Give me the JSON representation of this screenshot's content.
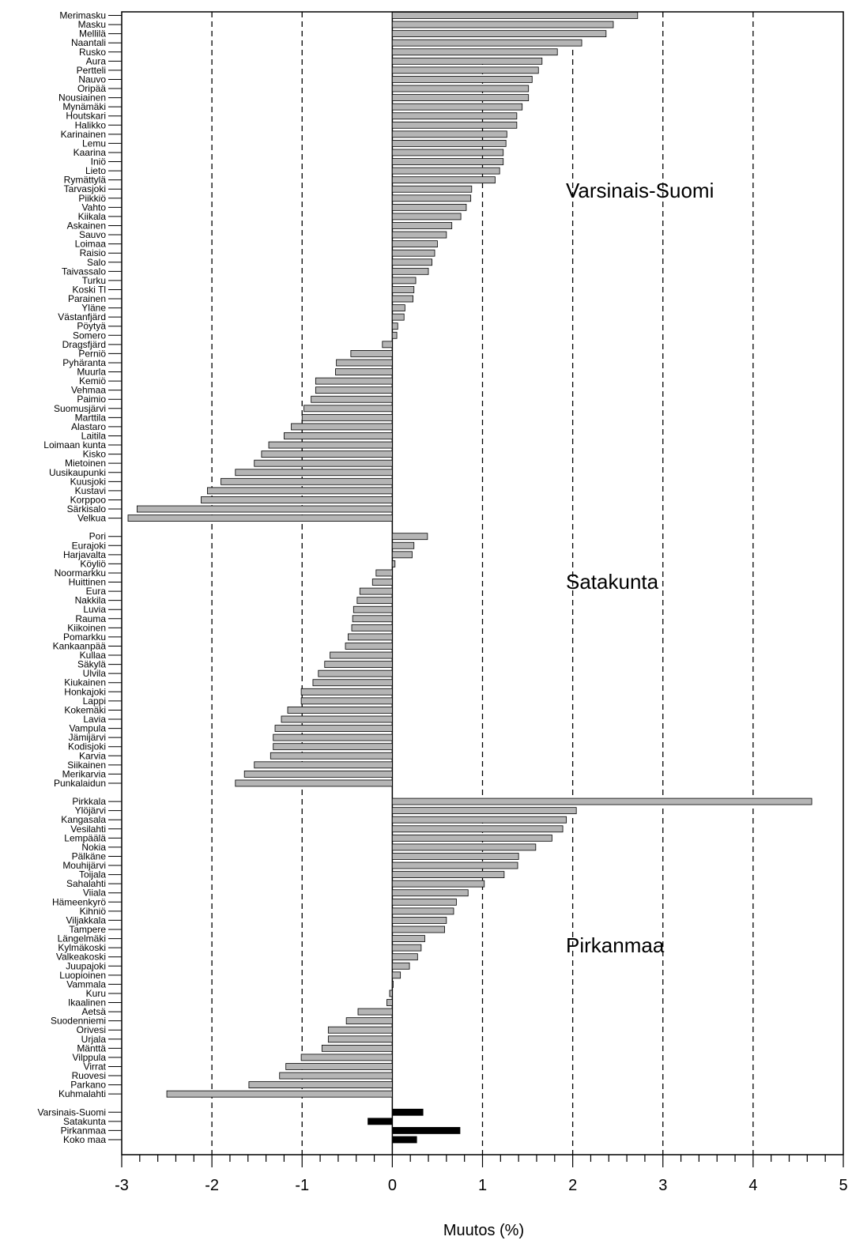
{
  "chart_data": {
    "type": "bar",
    "orientation": "horizontal",
    "xlabel": "Muutos (%)",
    "xlim": [
      -3,
      5
    ],
    "xticks": [
      -3,
      -2,
      -1,
      0,
      1,
      2,
      3,
      4,
      5
    ],
    "gridlines_at": [
      -2,
      -1,
      1,
      2,
      3,
      4
    ],
    "gridline_style": "dashed",
    "colors": {
      "municipality_bar": "#b5b5b5",
      "summary_bar": "#000000",
      "grid": "#000000"
    },
    "region_labels": [
      "Varsinais-Suomi",
      "Satakunta",
      "Pirkanmaa"
    ],
    "groups": [
      {
        "name": "Varsinais-Suomi",
        "categories": [
          "Merimasku",
          "Masku",
          "Mellilä",
          "Naantali",
          "Rusko",
          "Aura",
          "Pertteli",
          "Nauvo",
          "Oripää",
          "Nousiainen",
          "Mynämäki",
          "Houtskari",
          "Halikko",
          "Karinainen",
          "Lemu",
          "Kaarina",
          "Iniö",
          "Lieto",
          "Rymättylä",
          "Tarvasjoki",
          "Piikkiö",
          "Vahto",
          "Kiikala",
          "Askainen",
          "Sauvo",
          "Loimaa",
          "Raisio",
          "Salo",
          "Taivassalo",
          "Turku",
          "Koski Tl",
          "Parainen",
          "Yläne",
          "Västanfjärd",
          "Pöytyä",
          "Somero",
          "Dragsfjärd",
          "Perniö",
          "Pyhäranta",
          "Muurla",
          "Kemiö",
          "Vehmaa",
          "Paimio",
          "Suomusjärvi",
          "Marttila",
          "Alastaro",
          "Laitila",
          "Loimaan kunta",
          "Kisko",
          "Mietoinen",
          "Uusikaupunki",
          "Kuusjoki",
          "Kustavi",
          "Korppoo",
          "Särkisalo",
          "Velkua"
        ],
        "values": [
          2.72,
          2.45,
          2.37,
          2.1,
          1.83,
          1.66,
          1.62,
          1.55,
          1.51,
          1.51,
          1.44,
          1.38,
          1.38,
          1.27,
          1.26,
          1.23,
          1.23,
          1.19,
          1.14,
          0.88,
          0.87,
          0.82,
          0.76,
          0.66,
          0.6,
          0.5,
          0.47,
          0.44,
          0.4,
          0.26,
          0.24,
          0.23,
          0.14,
          0.13,
          0.06,
          0.05,
          -0.11,
          -0.46,
          -0.62,
          -0.63,
          -0.85,
          -0.85,
          -0.9,
          -0.98,
          -1.0,
          -1.12,
          -1.2,
          -1.37,
          -1.45,
          -1.53,
          -1.74,
          -1.9,
          -2.05,
          -2.12,
          -2.83,
          -2.93
        ]
      },
      {
        "name": "Satakunta",
        "categories": [
          "Pori",
          "Eurajoki",
          "Harjavalta",
          "Köyliö",
          "Noormarkku",
          "Huittinen",
          "Eura",
          "Nakkila",
          "Luvia",
          "Rauma",
          "Kiikoinen",
          "Pomarkku",
          "Kankaanpää",
          "Kullaa",
          "Säkylä",
          "Ulvila",
          "Kiukainen",
          "Honkajoki",
          "Lappi",
          "Kokemäki",
          "Lavia",
          "Vampula",
          "Jämijärvi",
          "Kodisjoki",
          "Karvia",
          "Siikainen",
          "Merikarvia",
          "Punkalaidun"
        ],
        "values": [
          0.39,
          0.24,
          0.22,
          0.03,
          -0.18,
          -0.22,
          -0.36,
          -0.39,
          -0.43,
          -0.44,
          -0.45,
          -0.49,
          -0.52,
          -0.69,
          -0.75,
          -0.82,
          -0.88,
          -1.01,
          -1.01,
          -1.16,
          -1.23,
          -1.3,
          -1.32,
          -1.32,
          -1.35,
          -1.53,
          -1.64,
          -1.74
        ]
      },
      {
        "name": "Pirkanmaa",
        "categories": [
          "Pirkkala",
          "Ylöjärvi",
          "Kangasala",
          "Vesilahti",
          "Lempäälä",
          "Nokia",
          "Pälkäne",
          "Mouhijärvi",
          "Toijala",
          "Sahalahti",
          "Viiala",
          "Hämeenkyrö",
          "Kihniö",
          "Viljakkala",
          "Tampere",
          "Längelmäki",
          "Kylmäkoski",
          "Valkeakoski",
          "Juupajoki",
          "Luopioinen",
          "Vammala",
          "Kuru",
          "Ikaalinen",
          "Aetsä",
          "Suodenniemi",
          "Orivesi",
          "Urjala",
          "Mänttä",
          "Vilppula",
          "Virrat",
          "Ruovesi",
          "Parkano",
          "Kuhmalahti"
        ],
        "values": [
          4.65,
          2.04,
          1.93,
          1.89,
          1.77,
          1.59,
          1.4,
          1.39,
          1.24,
          1.02,
          0.84,
          0.71,
          0.68,
          0.6,
          0.58,
          0.36,
          0.32,
          0.28,
          0.19,
          0.09,
          0.01,
          -0.03,
          -0.06,
          -0.38,
          -0.51,
          -0.71,
          -0.71,
          -0.78,
          -1.01,
          -1.18,
          -1.25,
          -1.59,
          -2.5
        ]
      },
      {
        "name": "summary",
        "categories": [
          "Varsinais-Suomi",
          "Satakunta",
          "Pirkanmaa",
          "Koko maa"
        ],
        "values": [
          0.34,
          -0.27,
          0.75,
          0.27
        ]
      }
    ]
  }
}
